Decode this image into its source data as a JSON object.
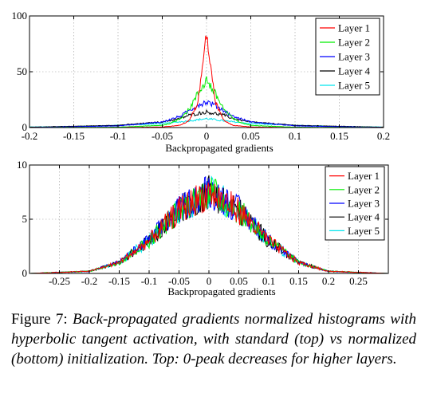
{
  "caption": {
    "label": "Figure 7:",
    "text": "Back-propagated gradients normalized histograms with hyperbolic tangent activation, with standard (top) vs normalized (bottom) initialization. Top: 0-peak decreases for higher layers."
  },
  "colors": {
    "Layer 1": "#ff0000",
    "Layer 2": "#00ee00",
    "Layer 3": "#0000ff",
    "Layer 4": "#000000",
    "Layer 5": "#00e5ee"
  },
  "chart_data": [
    {
      "type": "line",
      "panel": "top",
      "xlabel": "Backpropagated gradients",
      "ylabel": "",
      "xlim": [
        -0.2,
        0.2
      ],
      "ylim": [
        0,
        100
      ],
      "xticks": [
        "-0.2",
        "-0.15",
        "-0.1",
        "-0.05",
        "0",
        "0.05",
        "0.1",
        "0.15",
        "0.2"
      ],
      "yticks": [
        "0",
        "50",
        "100"
      ],
      "grid": true,
      "legend": "top-right",
      "series": [
        {
          "name": "Layer 1",
          "x": [
            -0.2,
            -0.1,
            -0.05,
            -0.03,
            -0.02,
            -0.01,
            -0.005,
            0,
            0.005,
            0.01,
            0.02,
            0.03,
            0.05,
            0.1,
            0.2
          ],
          "values": [
            0,
            0,
            0.5,
            2,
            6,
            22,
            50,
            85,
            50,
            22,
            6,
            2,
            0.5,
            0,
            0
          ]
        },
        {
          "name": "Layer 2",
          "x": [
            -0.2,
            -0.1,
            -0.05,
            -0.04,
            -0.03,
            -0.02,
            -0.01,
            0,
            0.01,
            0.02,
            0.03,
            0.04,
            0.05,
            0.1,
            0.2
          ],
          "values": [
            0,
            0.3,
            2,
            4,
            8,
            16,
            30,
            43,
            30,
            16,
            8,
            4,
            2,
            0.3,
            0
          ]
        },
        {
          "name": "Layer 3",
          "x": [
            -0.2,
            -0.1,
            -0.05,
            -0.03,
            -0.02,
            -0.01,
            0,
            0.01,
            0.02,
            0.03,
            0.05,
            0.1,
            0.2
          ],
          "values": [
            0,
            1.5,
            5,
            10,
            15,
            20,
            23,
            20,
            15,
            10,
            5,
            1.5,
            0
          ]
        },
        {
          "name": "Layer 4",
          "x": [
            -0.2,
            -0.1,
            -0.05,
            -0.03,
            -0.02,
            0,
            0.02,
            0.03,
            0.05,
            0.1,
            0.2
          ],
          "values": [
            0.3,
            2,
            5,
            8,
            11,
            14,
            11,
            8,
            5,
            2,
            0.3
          ]
        },
        {
          "name": "Layer 5",
          "x": [
            -0.2,
            -0.15,
            -0.1,
            -0.05,
            -0.02,
            0,
            0.02,
            0.05,
            0.1,
            0.15,
            0.2
          ],
          "values": [
            0.5,
            1,
            2,
            3.5,
            6,
            8,
            6,
            3.5,
            2,
            1,
            0.5
          ]
        }
      ]
    },
    {
      "type": "line",
      "panel": "bottom",
      "xlabel": "Backpropagated gradients",
      "ylabel": "",
      "xlim": [
        -0.3,
        0.3
      ],
      "ylim": [
        0,
        10
      ],
      "xticks": [
        "-0.25",
        "-0.2",
        "-0.15",
        "-0.1",
        "-0.05",
        "0",
        "0.05",
        "0.1",
        "0.15",
        "0.2",
        "0.25"
      ],
      "yticks": [
        "0",
        "5",
        "10"
      ],
      "grid": true,
      "legend": "top-right",
      "series": [
        {
          "name": "Layer 1",
          "x": [
            -0.3,
            -0.2,
            -0.15,
            -0.1,
            -0.05,
            0,
            0.05,
            0.1,
            0.15,
            0.2,
            0.3
          ],
          "values": [
            0,
            0.2,
            1,
            3,
            5.8,
            7.5,
            5.8,
            3,
            1,
            0.2,
            0
          ]
        },
        {
          "name": "Layer 2",
          "x": [
            -0.3,
            -0.2,
            -0.15,
            -0.1,
            -0.05,
            0,
            0.05,
            0.1,
            0.15,
            0.2,
            0.3
          ],
          "values": [
            0,
            0.2,
            1,
            3,
            5.8,
            7.6,
            5.8,
            3,
            1,
            0.2,
            0
          ]
        },
        {
          "name": "Layer 3",
          "x": [
            -0.3,
            -0.2,
            -0.15,
            -0.1,
            -0.05,
            0,
            0.05,
            0.1,
            0.15,
            0.2,
            0.3
          ],
          "values": [
            0,
            0.2,
            1,
            3.1,
            5.9,
            7.7,
            5.9,
            3.1,
            1,
            0.2,
            0
          ]
        },
        {
          "name": "Layer 4",
          "x": [
            -0.3,
            -0.2,
            -0.15,
            -0.1,
            -0.05,
            0,
            0.05,
            0.1,
            0.15,
            0.2,
            0.3
          ],
          "values": [
            0,
            0.2,
            1,
            3,
            5.8,
            7.6,
            5.8,
            3,
            1,
            0.2,
            0
          ]
        },
        {
          "name": "Layer 5",
          "x": [
            -0.3,
            -0.2,
            -0.15,
            -0.1,
            -0.05,
            0,
            0.05,
            0.1,
            0.15,
            0.2,
            0.3
          ],
          "values": [
            0,
            0.2,
            1,
            3,
            5.8,
            7.6,
            5.8,
            3,
            1,
            0.2,
            0
          ]
        }
      ]
    }
  ]
}
